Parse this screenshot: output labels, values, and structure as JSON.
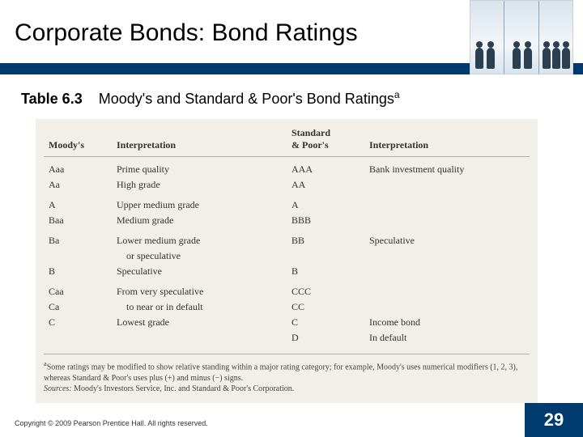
{
  "slide": {
    "title": "Corporate Bonds: Bond Ratings",
    "caption_label": "Table 6.3",
    "caption_text": "Moody's and Standard & Poor's Bond Ratings",
    "caption_sup": "a",
    "copyright": "Copyright © 2009 Pearson Prentice Hall. All rights reserved.",
    "page_number": "29"
  },
  "table": {
    "headers": {
      "moodys": "Moody's",
      "interp1": "Interpretation",
      "sp_line1": "Standard",
      "sp_line2": "& Poor's",
      "interp2": "Interpretation"
    },
    "rows": [
      {
        "moodys": "Aaa",
        "interp1": "Prime quality",
        "sp": "AAA",
        "interp2": "Bank investment quality",
        "gap": true
      },
      {
        "moodys": "Aa",
        "interp1": "High grade",
        "sp": "AA",
        "interp2": "",
        "gap": false
      },
      {
        "moodys": "A",
        "interp1": "Upper medium grade",
        "sp": "A",
        "interp2": "",
        "gap": true
      },
      {
        "moodys": "Baa",
        "interp1": "Medium grade",
        "sp": "BBB",
        "interp2": "",
        "gap": false
      },
      {
        "moodys": "Ba",
        "interp1": "Lower medium grade",
        "sp": "BB",
        "interp2": "Speculative",
        "gap": true
      },
      {
        "moodys": "",
        "interp1": "  or speculative",
        "sp": "",
        "interp2": "",
        "gap": false
      },
      {
        "moodys": "B",
        "interp1": "Speculative",
        "sp": "B",
        "interp2": "",
        "gap": false
      },
      {
        "moodys": "Caa",
        "interp1": "From very speculative",
        "sp": "CCC",
        "interp2": "",
        "gap": true
      },
      {
        "moodys": "Ca",
        "interp1": "  to near or in default",
        "sp": "CC",
        "interp2": "",
        "gap": false
      },
      {
        "moodys": "C",
        "interp1": "Lowest grade",
        "sp": "C",
        "interp2": "Income bond",
        "gap": false
      },
      {
        "moodys": "",
        "interp1": "",
        "sp": "D",
        "interp2": "In default",
        "gap": false
      }
    ],
    "footnote": "Some ratings may be modified to show relative standing within a major rating category; for example, Moody's uses numerical modifiers (1, 2, 3), whereas Standard & Poor's uses plus (+) and minus (−) signs.",
    "footnote_label": "a",
    "sources_label": "Sources:",
    "sources_text": "Moody's Investors Service, Inc. and Standard & Poor's Corporation."
  },
  "colors": {
    "banner": "#003a6e",
    "table_bg": "#f2efe8",
    "rule": "#b6b1a4"
  }
}
